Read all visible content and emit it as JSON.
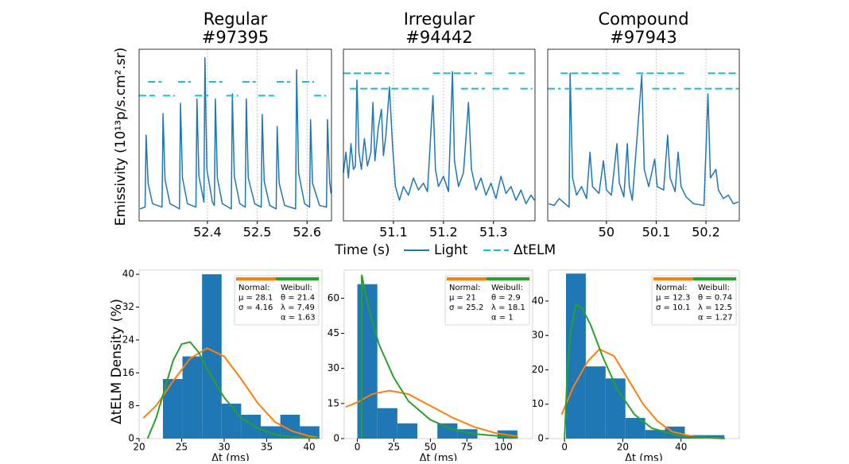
{
  "figure": {
    "top_ylabel": "Emissivity (10¹³p/s.cm².sr)",
    "top_xlabel": "Time (s)",
    "bottom_ylabel": "ΔtELM Density (%)"
  },
  "chart_data": [
    {
      "type": "line",
      "title": "Regular",
      "subtitle": "#97395",
      "xlim": [
        52.263,
        52.649
      ],
      "xticks": [
        52.4,
        52.5,
        52.6
      ],
      "ylim": [
        0,
        10
      ],
      "grid": true,
      "series": [
        {
          "name": "Light",
          "color": "#1f77b4",
          "x": [
            52.265,
            52.275,
            52.277,
            52.281,
            52.29,
            52.309,
            52.311,
            52.315,
            52.325,
            52.344,
            52.346,
            52.35,
            52.36,
            52.377,
            52.379,
            52.383,
            52.393,
            52.395,
            52.399,
            52.41,
            52.414,
            52.416,
            52.42,
            52.43,
            52.448,
            52.45,
            52.454,
            52.465,
            52.476,
            52.478,
            52.482,
            52.495,
            52.508,
            52.51,
            52.514,
            52.525,
            52.538,
            52.54,
            52.544,
            52.555,
            52.577,
            52.579,
            52.583,
            52.595,
            52.605,
            52.607,
            52.611,
            52.625,
            52.639,
            52.641,
            52.645,
            52.648
          ],
          "values": [
            0.7,
            0.8,
            5.0,
            2.2,
            1.0,
            0.8,
            6.25,
            2.4,
            1.0,
            0.7,
            6.85,
            2.5,
            1.0,
            0.8,
            7.1,
            2.6,
            1.1,
            9.5,
            3.0,
            1.1,
            0.9,
            7.1,
            2.5,
            1.0,
            0.7,
            7.4,
            2.6,
            1.0,
            0.8,
            7.1,
            2.5,
            1.0,
            0.8,
            6.2,
            2.3,
            0.9,
            0.7,
            5.5,
            2.2,
            0.9,
            0.7,
            8.8,
            2.8,
            1.0,
            0.8,
            5.9,
            2.2,
            0.9,
            0.8,
            5.9,
            2.4,
            1.6
          ]
        },
        {
          "name": "ΔtELM",
          "color": "#17becf",
          "dashed": true,
          "x": [
            52.263,
            52.295,
            null,
            52.281,
            52.308,
            null,
            52.311,
            52.335,
            null,
            52.341,
            52.367,
            null,
            52.375,
            52.402,
            null,
            52.403,
            52.43,
            null,
            52.438,
            52.462,
            null,
            52.47,
            52.497,
            null,
            52.502,
            52.534,
            null,
            52.539,
            52.566,
            null,
            52.59,
            52.614,
            null,
            52.614,
            52.638
          ],
          "values": [
            7.3,
            7.3,
            null,
            8.1,
            8.1,
            null,
            7.3,
            7.3,
            null,
            8.1,
            8.1,
            null,
            7.3,
            7.3,
            null,
            8.1,
            8.1,
            null,
            7.3,
            7.3,
            null,
            8.1,
            8.1,
            null,
            7.3,
            7.3,
            null,
            8.1,
            8.1,
            null,
            8.1,
            8.1,
            null,
            7.3,
            7.3
          ]
        }
      ]
    },
    {
      "type": "line",
      "title": "Irregular",
      "subtitle": "#94442",
      "xlim": [
        51.0,
        51.383
      ],
      "xticks": [
        51.1,
        51.2,
        51.3
      ],
      "ylim": [
        0,
        10
      ],
      "grid": true,
      "series": [
        {
          "name": "Light",
          "color": "#1f77b4",
          "x": [
            51.0,
            51.005,
            51.01,
            51.015,
            51.02,
            51.024,
            51.027,
            51.031,
            51.036,
            51.042,
            51.048,
            51.055,
            51.059,
            51.063,
            51.07,
            51.076,
            51.08,
            51.085,
            51.092,
            51.098,
            51.104,
            51.112,
            51.12,
            51.13,
            51.14,
            51.15,
            51.16,
            51.168,
            51.179,
            51.184,
            51.19,
            51.2,
            51.21,
            51.218,
            51.222,
            51.23,
            51.24,
            51.25,
            51.256,
            51.265,
            51.275,
            51.285,
            51.295,
            51.305,
            51.315,
            51.325,
            51.335,
            51.345,
            51.355,
            51.365,
            51.375,
            51.382
          ],
          "values": [
            2.8,
            4.0,
            2.5,
            4.5,
            3.0,
            3.2,
            8.2,
            4.0,
            3.0,
            4.8,
            3.2,
            4.0,
            6.9,
            3.5,
            5.5,
            6.5,
            3.8,
            5.0,
            7.8,
            4.5,
            2.0,
            1.2,
            2.0,
            1.5,
            2.5,
            1.8,
            2.2,
            1.7,
            7.3,
            3.0,
            2.0,
            2.6,
            1.7,
            8.7,
            3.5,
            2.0,
            2.8,
            6.9,
            3.0,
            1.8,
            2.5,
            1.5,
            2.2,
            1.3,
            2.6,
            1.6,
            2.0,
            1.2,
            1.8,
            1.0,
            1.5,
            1.2
          ]
        },
        {
          "name": "ΔtELM",
          "color": "#17becf",
          "dashed": true,
          "x": [
            51.0,
            51.092,
            null,
            51.013,
            51.171,
            null,
            51.179,
            51.267,
            null,
            51.235,
            51.283,
            null,
            51.283,
            51.298,
            null,
            51.298,
            51.33,
            null,
            51.33,
            51.362,
            null,
            51.354,
            51.378
          ],
          "values": [
            8.6,
            8.6,
            null,
            7.7,
            7.7,
            null,
            8.6,
            8.6,
            null,
            7.7,
            7.7,
            null,
            8.6,
            8.6,
            null,
            7.7,
            7.7,
            null,
            8.6,
            8.6,
            null,
            7.7,
            7.7
          ]
        }
      ]
    },
    {
      "type": "line",
      "title": "Compound",
      "subtitle": "#97943",
      "xlim": [
        49.882,
        50.267
      ],
      "xticks": [
        50.0,
        50.1,
        50.2
      ],
      "ylim": [
        0,
        10
      ],
      "grid": true,
      "series": [
        {
          "name": "Light",
          "color": "#1f77b4",
          "x": [
            49.884,
            49.895,
            49.905,
            49.925,
            49.927,
            49.932,
            49.94,
            49.95,
            49.96,
            49.967,
            49.972,
            49.985,
            49.994,
            50.0,
            50.01,
            50.021,
            50.026,
            50.035,
            50.042,
            50.046,
            50.052,
            50.071,
            50.076,
            50.085,
            50.097,
            50.102,
            50.115,
            50.123,
            50.128,
            50.138,
            50.144,
            50.15,
            50.16,
            50.175,
            50.196,
            50.204,
            50.209,
            50.22,
            50.225,
            50.235,
            50.245,
            50.255,
            50.265
          ],
          "values": [
            1.0,
            0.9,
            1.3,
            0.8,
            8.6,
            2.5,
            1.5,
            2.0,
            1.3,
            4.0,
            2.0,
            1.6,
            3.5,
            1.8,
            1.5,
            4.5,
            2.2,
            1.4,
            4.5,
            2.0,
            1.2,
            8.5,
            3.0,
            2.0,
            3.6,
            2.0,
            1.8,
            5.0,
            2.5,
            1.7,
            4.0,
            2.0,
            1.4,
            1.0,
            0.9,
            7.4,
            2.5,
            3.0,
            1.8,
            1.3,
            1.5,
            1.0,
            1.1
          ]
        },
        {
          "name": "ΔtELM",
          "color": "#17becf",
          "dashed": true,
          "x": [
            49.882,
            49.908,
            null,
            49.908,
            50.028,
            null,
            49.916,
            50.06,
            null,
            50.06,
            50.156,
            null,
            50.092,
            50.14,
            null,
            50.156,
            50.266,
            null,
            50.204,
            50.26
          ],
          "values": [
            7.7,
            7.7,
            null,
            8.6,
            8.6,
            null,
            7.7,
            7.7,
            null,
            8.6,
            8.6,
            null,
            7.7,
            7.7,
            null,
            7.7,
            7.7,
            null,
            8.6,
            8.6
          ]
        }
      ]
    },
    {
      "type": "histogram",
      "xlabel": "Δt (ms)",
      "xlim": [
        20,
        41.5
      ],
      "xticks": [
        20,
        25,
        30,
        35,
        40
      ],
      "ylim": [
        0,
        41
      ],
      "yticks": [
        0,
        8,
        16,
        24,
        32,
        40
      ],
      "color": "#1f77b4",
      "bins": [
        22.8,
        25.1,
        27.4,
        29.7,
        32.0,
        34.3,
        36.6,
        38.9,
        41.2
      ],
      "values": [
        14.5,
        20,
        40,
        8.5,
        5.8,
        3,
        5.8,
        3
      ],
      "curves": [
        {
          "color": "#ff7f0e",
          "x": [
            20.5,
            22,
            24,
            26,
            28,
            30,
            32,
            34,
            36,
            38,
            40,
            41
          ],
          "values": [
            5,
            8,
            14,
            19.5,
            22,
            20,
            14.5,
            8.5,
            4,
            1.8,
            0.6,
            0.3
          ]
        },
        {
          "color": "#2ca02c",
          "x": [
            21,
            22,
            23,
            24,
            25,
            26,
            27,
            28,
            30,
            32,
            34,
            36,
            38,
            41
          ],
          "values": [
            0,
            5,
            12,
            19,
            23,
            23.5,
            21,
            17,
            10,
            5,
            2.5,
            1,
            0.4,
            0.1
          ]
        }
      ],
      "stats": {
        "normal": [
          "Normal:",
          "μ = 28.1",
          "σ = 4.16"
        ],
        "weibull": [
          "Weibull:",
          "θ = 21.4",
          "λ = 7.49",
          "α = 1.63"
        ]
      }
    },
    {
      "type": "histogram",
      "xlabel": "Δt (ms)",
      "xlim": [
        -9,
        120
      ],
      "xticks": [
        0,
        25,
        50,
        75,
        100
      ],
      "ylim": [
        0,
        72
      ],
      "yticks": [
        0,
        15,
        30,
        45,
        60
      ],
      "color": "#1f77b4",
      "bins": [
        0,
        13.7,
        27.4,
        41.1,
        54.8,
        68.5,
        82.2,
        95.9,
        109.6
      ],
      "values": [
        66,
        13,
        6.5,
        0,
        6.5,
        4,
        0,
        3.5
      ],
      "curves": [
        {
          "color": "#ff7f0e",
          "x": [
            -8,
            0,
            10,
            22,
            35,
            50,
            65,
            80,
            95,
            110
          ],
          "values": [
            13.5,
            15.5,
            19,
            20.5,
            19,
            14,
            9,
            5,
            2.3,
            0.9
          ]
        },
        {
          "color": "#2ca02c",
          "x": [
            2.9,
            3.0,
            8,
            15,
            25,
            35,
            50,
            65,
            80,
            110
          ],
          "values": [
            0,
            70,
            55,
            40,
            26,
            16,
            8,
            4,
            2,
            0.4
          ]
        }
      ],
      "stats": {
        "normal": [
          "Normal:",
          "μ = 21",
          "σ = 25.2"
        ],
        "weibull": [
          "Weibull:",
          "θ = 2.9",
          "λ = 18.1",
          "α = 1"
        ]
      }
    },
    {
      "type": "histogram",
      "xlabel": "Δt (ms)",
      "xlim": [
        -5.5,
        60
      ],
      "xticks": [
        0,
        20,
        40
      ],
      "ylim": [
        0,
        49
      ],
      "yticks": [
        0,
        10,
        20,
        30,
        40
      ],
      "color": "#1f77b4",
      "bins": [
        0.5,
        7.3,
        14.1,
        20.9,
        27.7,
        34.5,
        41.3,
        48.1,
        54.9
      ],
      "values": [
        48,
        21,
        17.5,
        6,
        2.5,
        3.5,
        1,
        1
      ],
      "curves": [
        {
          "color": "#ff7f0e",
          "x": [
            -1,
            3,
            8,
            12,
            17,
            22,
            27,
            32,
            37,
            45,
            55
          ],
          "values": [
            7,
            15,
            22.5,
            26,
            24,
            17,
            10,
            5,
            2,
            0.4,
            0.05
          ]
        },
        {
          "color": "#2ca02c",
          "x": [
            0,
            1,
            2,
            4,
            6,
            9,
            13,
            18,
            24,
            30,
            40,
            55
          ],
          "values": [
            0,
            20,
            31,
            39,
            38,
            33,
            24,
            14.5,
            7,
            3,
            0.6,
            0.02
          ]
        }
      ],
      "stats": {
        "normal": [
          "Normal:",
          "μ = 12.3",
          "σ = 10.1"
        ],
        "weibull": [
          "Weibull:",
          "θ = 0.74",
          "λ = 12.5",
          "α = 1.27"
        ]
      }
    }
  ]
}
